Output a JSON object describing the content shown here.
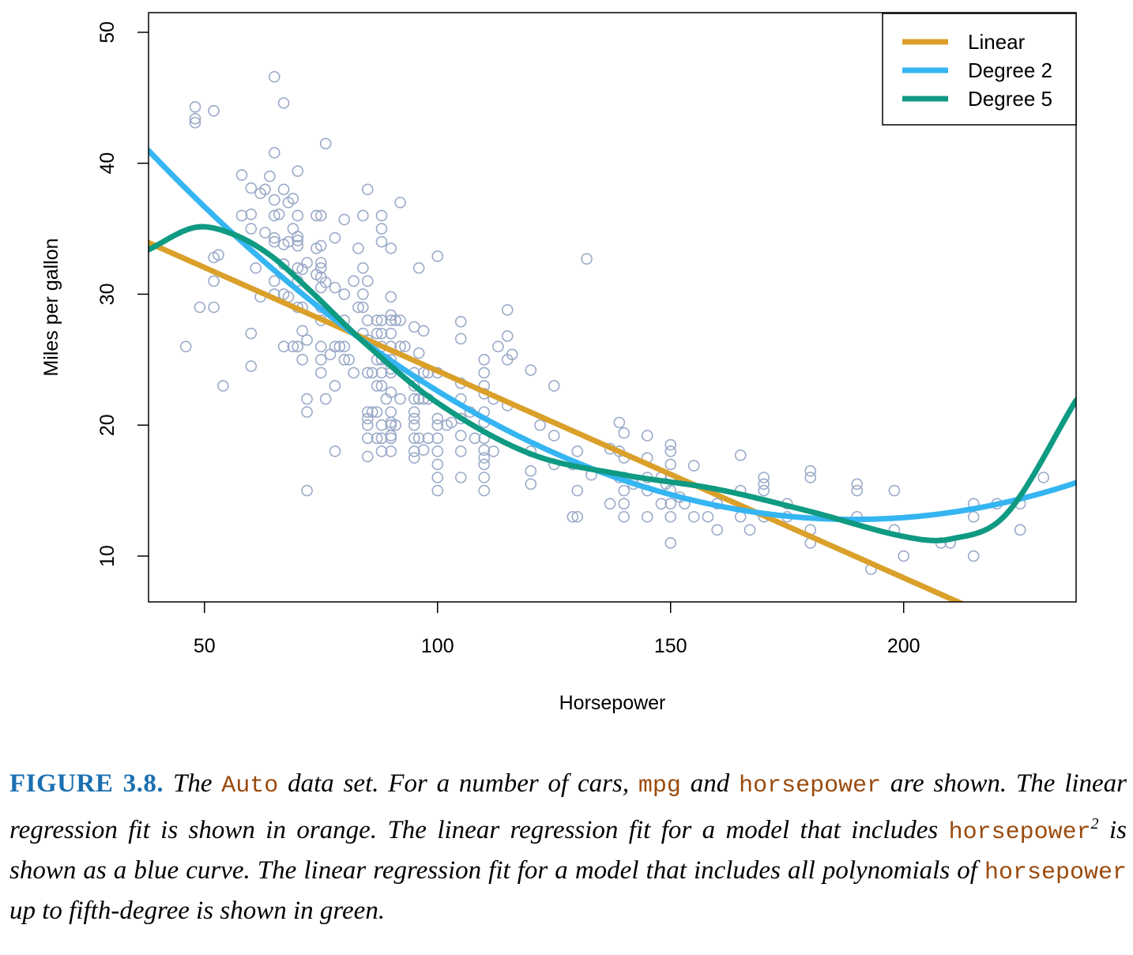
{
  "chart_data": {
    "type": "scatter",
    "xlabel": "Horsepower",
    "ylabel": "Miles per gallon",
    "xlim": [
      38,
      237
    ],
    "ylim": [
      6.5,
      51.5
    ],
    "xticks": [
      50,
      100,
      150,
      200
    ],
    "yticks": [
      10,
      20,
      30,
      40,
      50
    ],
    "grid": false,
    "legend_position": "top-right",
    "points_color": "#9aaac8",
    "points": [
      [
        46,
        26
      ],
      [
        48,
        44.3
      ],
      [
        48,
        43.4
      ],
      [
        48,
        43.1
      ],
      [
        49,
        29
      ],
      [
        52,
        44
      ],
      [
        52,
        32.8
      ],
      [
        52,
        31
      ],
      [
        52,
        29
      ],
      [
        53,
        33
      ],
      [
        54,
        23
      ],
      [
        58,
        39.1
      ],
      [
        58,
        36
      ],
      [
        60,
        38.1
      ],
      [
        60,
        36.1
      ],
      [
        60,
        35
      ],
      [
        60,
        27
      ],
      [
        60,
        24.5
      ],
      [
        61,
        32
      ],
      [
        62,
        37.7
      ],
      [
        62,
        29.8
      ],
      [
        63,
        34.7
      ],
      [
        63,
        38
      ],
      [
        64,
        39
      ],
      [
        65,
        46.6
      ],
      [
        65,
        40.8
      ],
      [
        65,
        37.2
      ],
      [
        65,
        36
      ],
      [
        65,
        34.3
      ],
      [
        65,
        34
      ],
      [
        65,
        31
      ],
      [
        65,
        30
      ],
      [
        66,
        36.1
      ],
      [
        67,
        44.6
      ],
      [
        67,
        38
      ],
      [
        67,
        33.8
      ],
      [
        67,
        32.3
      ],
      [
        67,
        26
      ],
      [
        67,
        30
      ],
      [
        68,
        37
      ],
      [
        68,
        34
      ],
      [
        68,
        29.8
      ],
      [
        69,
        37.3
      ],
      [
        69,
        35
      ],
      [
        69,
        26
      ],
      [
        70,
        39.4
      ],
      [
        70,
        36
      ],
      [
        70,
        34.4
      ],
      [
        70,
        34.1
      ],
      [
        70,
        33.7
      ],
      [
        70,
        32
      ],
      [
        70,
        31
      ],
      [
        70,
        29
      ],
      [
        70,
        26
      ],
      [
        71,
        31.9
      ],
      [
        71,
        29
      ],
      [
        71,
        25
      ],
      [
        71,
        27.2
      ],
      [
        72,
        32.4
      ],
      [
        72,
        26.5
      ],
      [
        72,
        22
      ],
      [
        72,
        21
      ],
      [
        72,
        15
      ],
      [
        74,
        36
      ],
      [
        74,
        33.5
      ],
      [
        74,
        31.5
      ],
      [
        75,
        36
      ],
      [
        75,
        33.7
      ],
      [
        75,
        32.4
      ],
      [
        75,
        32
      ],
      [
        75,
        31.3
      ],
      [
        75,
        30.5
      ],
      [
        75,
        29
      ],
      [
        75,
        28
      ],
      [
        75,
        26
      ],
      [
        75,
        25
      ],
      [
        75,
        24
      ],
      [
        76,
        41.5
      ],
      [
        76,
        30.9
      ],
      [
        76,
        22
      ],
      [
        77,
        25.4
      ],
      [
        78,
        34.3
      ],
      [
        78,
        30.5
      ],
      [
        78,
        26
      ],
      [
        78,
        23
      ],
      [
        78,
        18
      ],
      [
        79,
        26
      ],
      [
        80,
        35.7
      ],
      [
        80,
        30
      ],
      [
        80,
        28
      ],
      [
        80,
        26
      ],
      [
        80,
        25
      ],
      [
        81,
        25
      ],
      [
        82,
        31
      ],
      [
        82,
        24
      ],
      [
        83,
        33.5
      ],
      [
        83,
        29
      ],
      [
        84,
        36
      ],
      [
        84,
        32
      ],
      [
        84,
        30
      ],
      [
        84,
        29
      ],
      [
        84,
        27
      ],
      [
        85,
        38
      ],
      [
        85,
        31
      ],
      [
        85,
        28
      ],
      [
        85,
        26.5
      ],
      [
        85,
        24
      ],
      [
        85,
        21
      ],
      [
        85,
        20.5
      ],
      [
        85,
        20
      ],
      [
        85,
        19
      ],
      [
        85,
        17.6
      ],
      [
        86,
        24
      ],
      [
        86,
        21
      ],
      [
        87,
        28
      ],
      [
        87,
        27
      ],
      [
        87,
        25
      ],
      [
        87,
        23
      ],
      [
        87,
        21
      ],
      [
        87,
        19
      ],
      [
        88,
        36
      ],
      [
        88,
        35
      ],
      [
        88,
        34
      ],
      [
        88,
        28
      ],
      [
        88,
        27
      ],
      [
        88,
        26
      ],
      [
        88,
        25
      ],
      [
        88,
        24
      ],
      [
        88,
        23
      ],
      [
        88,
        20
      ],
      [
        88,
        19
      ],
      [
        88,
        18
      ],
      [
        89,
        25
      ],
      [
        89,
        22
      ],
      [
        90,
        33.5
      ],
      [
        90,
        29.8
      ],
      [
        90,
        28.4
      ],
      [
        90,
        28
      ],
      [
        90,
        27
      ],
      [
        90,
        26
      ],
      [
        90,
        25
      ],
      [
        90,
        24.3
      ],
      [
        90,
        24
      ],
      [
        90,
        22.5
      ],
      [
        90,
        21
      ],
      [
        90,
        20.2
      ],
      [
        90,
        20
      ],
      [
        90,
        19.2
      ],
      [
        90,
        19
      ],
      [
        90,
        18
      ],
      [
        91,
        28
      ],
      [
        91,
        20
      ],
      [
        92,
        37
      ],
      [
        92,
        28
      ],
      [
        92,
        26
      ],
      [
        92,
        22
      ],
      [
        93,
        26
      ],
      [
        95,
        27.5
      ],
      [
        95,
        24
      ],
      [
        95,
        23
      ],
      [
        95,
        22
      ],
      [
        95,
        21
      ],
      [
        95,
        20.5
      ],
      [
        95,
        20
      ],
      [
        95,
        19
      ],
      [
        95,
        18
      ],
      [
        95,
        17.5
      ],
      [
        96,
        32
      ],
      [
        96,
        25.5
      ],
      [
        96,
        22
      ],
      [
        96,
        19
      ],
      [
        97,
        27.2
      ],
      [
        97,
        24
      ],
      [
        97,
        22
      ],
      [
        97,
        18.1
      ],
      [
        98,
        24
      ],
      [
        98,
        22
      ],
      [
        98,
        19
      ],
      [
        100,
        32.9
      ],
      [
        100,
        24
      ],
      [
        100,
        20.5
      ],
      [
        100,
        20
      ],
      [
        100,
        19
      ],
      [
        100,
        18
      ],
      [
        100,
        17
      ],
      [
        100,
        16
      ],
      [
        100,
        15
      ],
      [
        102,
        20
      ],
      [
        103,
        20.2
      ],
      [
        105,
        27.9
      ],
      [
        105,
        26.6
      ],
      [
        105,
        23.2
      ],
      [
        105,
        22
      ],
      [
        105,
        20.5
      ],
      [
        105,
        19.2
      ],
      [
        105,
        18
      ],
      [
        105,
        16
      ],
      [
        107,
        21
      ],
      [
        108,
        19
      ],
      [
        110,
        25
      ],
      [
        110,
        24
      ],
      [
        110,
        23
      ],
      [
        110,
        22.4
      ],
      [
        110,
        21
      ],
      [
        110,
        20.2
      ],
      [
        110,
        19
      ],
      [
        110,
        18.1
      ],
      [
        110,
        17.5
      ],
      [
        110,
        17
      ],
      [
        110,
        16
      ],
      [
        110,
        15
      ],
      [
        112,
        22
      ],
      [
        112,
        18
      ],
      [
        113,
        26
      ],
      [
        115,
        28.8
      ],
      [
        115,
        26.8
      ],
      [
        115,
        25
      ],
      [
        115,
        21.5
      ],
      [
        116,
        25.4
      ],
      [
        120,
        24.2
      ],
      [
        120,
        18
      ],
      [
        120,
        16.5
      ],
      [
        120,
        15.5
      ],
      [
        122,
        20
      ],
      [
        125,
        23
      ],
      [
        125,
        19.2
      ],
      [
        125,
        17
      ],
      [
        129,
        13
      ],
      [
        129,
        17
      ],
      [
        130,
        18
      ],
      [
        130,
        15
      ],
      [
        130,
        13
      ],
      [
        132,
        32.7
      ],
      [
        133,
        16.2
      ],
      [
        137,
        18.2
      ],
      [
        137,
        14
      ],
      [
        139,
        20.2
      ],
      [
        139,
        16
      ],
      [
        139,
        18
      ],
      [
        140,
        19.4
      ],
      [
        140,
        17.5
      ],
      [
        140,
        16
      ],
      [
        140,
        15
      ],
      [
        140,
        14
      ],
      [
        140,
        13
      ],
      [
        142,
        15.5
      ],
      [
        145,
        19.2
      ],
      [
        145,
        17.5
      ],
      [
        145,
        16
      ],
      [
        145,
        15
      ],
      [
        145,
        13
      ],
      [
        148,
        16
      ],
      [
        148,
        14
      ],
      [
        149,
        15.5
      ],
      [
        150,
        18.5
      ],
      [
        150,
        18
      ],
      [
        150,
        17
      ],
      [
        150,
        16
      ],
      [
        150,
        15
      ],
      [
        150,
        14
      ],
      [
        150,
        13
      ],
      [
        150,
        11
      ],
      [
        152,
        14.5
      ],
      [
        153,
        14
      ],
      [
        155,
        16.9
      ],
      [
        155,
        13
      ],
      [
        158,
        13
      ],
      [
        160,
        14
      ],
      [
        160,
        12
      ],
      [
        165,
        17.7
      ],
      [
        165,
        15
      ],
      [
        165,
        13
      ],
      [
        167,
        12
      ],
      [
        170,
        16
      ],
      [
        170,
        15.5
      ],
      [
        170,
        15
      ],
      [
        170,
        13
      ],
      [
        175,
        14
      ],
      [
        175,
        13
      ],
      [
        180,
        16.5
      ],
      [
        180,
        16
      ],
      [
        180,
        12
      ],
      [
        180,
        11
      ],
      [
        190,
        15.5
      ],
      [
        190,
        15
      ],
      [
        190,
        13
      ],
      [
        193,
        9
      ],
      [
        198,
        15
      ],
      [
        198,
        12
      ],
      [
        200,
        10
      ],
      [
        208,
        11
      ],
      [
        210,
        11
      ],
      [
        215,
        14
      ],
      [
        215,
        13
      ],
      [
        215,
        10
      ],
      [
        220,
        14
      ],
      [
        225,
        14
      ],
      [
        225,
        12
      ],
      [
        230,
        16
      ]
    ],
    "series": [
      {
        "name": "Linear",
        "color": "#daa02a",
        "degree": 1,
        "coef": [
          39.94,
          -0.158
        ]
      },
      {
        "name": "Degree 2",
        "color": "#35b5f2",
        "degree": 2,
        "coef": [
          56.9,
          -0.466,
          0.001231
        ]
      },
      {
        "name": "Degree 5",
        "color": "#0f9a82",
        "degree": 5,
        "x_knots": [
          38,
          48,
          56,
          64,
          72,
          84,
          100,
          120,
          140,
          160,
          180,
          200,
          210,
          222,
          237
        ],
        "y_knots": [
          33.4,
          35.1,
          34.6,
          33.0,
          30.5,
          26.4,
          21.7,
          17.8,
          16.2,
          15.1,
          13.4,
          11.5,
          11.3,
          13.2,
          21.9
        ]
      }
    ]
  },
  "caption": {
    "label": "FIGURE 3.8.",
    "t1": " The ",
    "code1": "Auto",
    "t2": " data set. For a number of cars, ",
    "code2": "mpg",
    "t3": " and ",
    "code3": "horsepower",
    "t4": " are shown. The linear regression fit is shown in orange. The linear regression fit for a model that includes ",
    "code4": "horsepower",
    "sup": "2",
    "t5": " is shown as a blue curve. The linear regression fit for a model that includes all polynomials of ",
    "code5": "horsepower",
    "t6": " up to fifth-degree is shown in green."
  }
}
